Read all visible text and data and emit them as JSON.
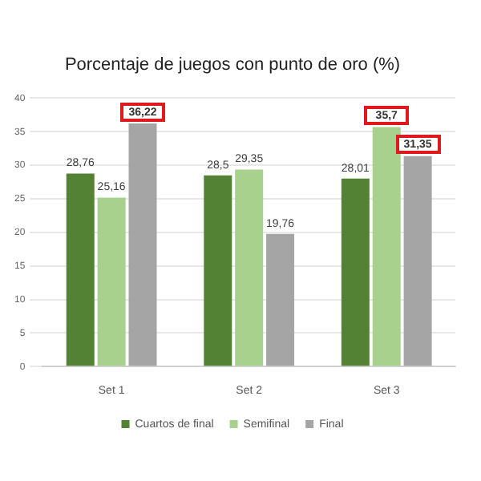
{
  "chart_data": {
    "type": "bar",
    "title": "Porcentaje de juegos con punto de oro (%)",
    "categories": [
      "Set 1",
      "Set 2",
      "Set 3"
    ],
    "series": [
      {
        "name": "Cuartos de final",
        "color": "#548235",
        "values": [
          28.76,
          28.5,
          28.01
        ],
        "value_labels": [
          "28,76",
          "28,5",
          "28,01"
        ]
      },
      {
        "name": "Semifinal",
        "color": "#a9d18e",
        "values": [
          25.16,
          29.35,
          35.7
        ],
        "value_labels": [
          "25,16",
          "29,35",
          null
        ]
      },
      {
        "name": "Final",
        "color": "#a5a5a5",
        "values": [
          36.22,
          19.76,
          31.35
        ],
        "value_labels": [
          null,
          "19,76",
          null
        ]
      }
    ],
    "annotations": [
      "36,22",
      "35,7",
      "31,35"
    ],
    "ylim": [
      0,
      40
    ],
    "yticks": [
      0,
      5,
      10,
      15,
      20,
      25,
      30,
      35,
      40
    ],
    "grid": "y",
    "legend": "bottom"
  }
}
